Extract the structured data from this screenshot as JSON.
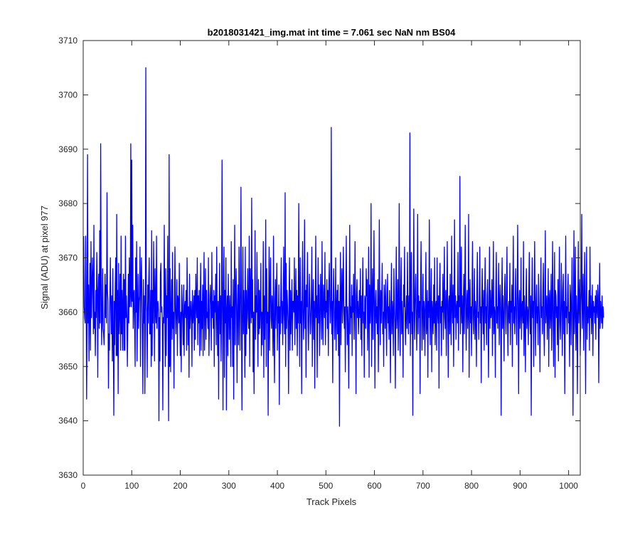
{
  "chart_data": {
    "type": "line",
    "title": "b2018031421_img.mat int time = 7.061 sec  NaN nm BS04",
    "xlabel": "Track Pixels",
    "ylabel": "Signal (ADU) at pixel 977",
    "xlim": [
      0,
      1024
    ],
    "ylim": [
      3630,
      3710
    ],
    "xticks": [
      0,
      100,
      200,
      300,
      400,
      500,
      600,
      700,
      800,
      900,
      1000
    ],
    "yticks": [
      3630,
      3640,
      3650,
      3660,
      3670,
      3680,
      3690,
      3700,
      3710
    ],
    "xtick_labels": [
      "0",
      "100",
      "200",
      "300",
      "400",
      "500",
      "600",
      "700",
      "800",
      "900",
      "1000"
    ],
    "ytick_labels": [
      "3630",
      "3640",
      "3650",
      "3660",
      "3670",
      "3680",
      "3690",
      "3700",
      "3710"
    ],
    "grid": false,
    "box": true,
    "series": [
      {
        "color": "#0000ff",
        "x_start": 1,
        "x_step": 1,
        "values": [
          3674,
          3661,
          3659,
          3658,
          3674,
          3665,
          3644,
          3659,
          3689,
          3658,
          3665,
          3651,
          3662,
          3669,
          3653,
          3673,
          3659,
          3664,
          3670,
          3665,
          3656,
          3676,
          3657,
          3660,
          3652,
          3664,
          3659,
          3671,
          3664,
          3648,
          3664,
          3667,
          3657,
          3675,
          3658,
          3691,
          3666,
          3654,
          3659,
          3668,
          3657,
          3656,
          3654,
          3660,
          3667,
          3659,
          3665,
          3658,
          3682,
          3664,
          3662,
          3646,
          3656,
          3653,
          3663,
          3670,
          3661,
          3656,
          3663,
          3651,
          3668,
          3655,
          3641,
          3662,
          3654,
          3665,
          3670,
          3652,
          3678,
          3652,
          3664,
          3645,
          3669,
          3656,
          3660,
          3667,
          3653,
          3674,
          3656,
          3664,
          3653,
          3662,
          3667,
          3653,
          3666,
          3653,
          3674,
          3659,
          3663,
          3659,
          3650,
          3658,
          3667,
          3658,
          3670,
          3661,
          3663,
          3691,
          3661,
          3688,
          3662,
          3676,
          3657,
          3663,
          3664,
          3657,
          3650,
          3670,
          3660,
          3673,
          3651,
          3660,
          3667,
          3657,
          3662,
          3663,
          3672,
          3650,
          3665,
          3670,
          3663,
          3655,
          3645,
          3666,
          3658,
          3663,
          3645,
          3657,
          3705,
          3662,
          3660,
          3648,
          3665,
          3658,
          3666,
          3670,
          3656,
          3656,
          3664,
          3650,
          3675,
          3652,
          3664,
          3658,
          3673,
          3663,
          3651,
          3668,
          3660,
          3658,
          3674,
          3657,
          3661,
          3662,
          3660,
          3640,
          3659,
          3651,
          3667,
          3669,
          3660,
          3661,
          3658,
          3642,
          3659,
          3658,
          3676,
          3661,
          3650,
          3668,
          3652,
          3663,
          3659,
          3674,
          3658,
          3640,
          3689,
          3650,
          3668,
          3649,
          3660,
          3666,
          3655,
          3671,
          3657,
          3660,
          3646,
          3662,
          3672,
          3660,
          3656,
          3661,
          3666,
          3652,
          3663,
          3662,
          3658,
          3669,
          3658,
          3652,
          3660,
          3649,
          3665,
          3662,
          3658,
          3654,
          3665,
          3652,
          3661,
          3662,
          3659,
          3664,
          3653,
          3670,
          3662,
          3654,
          3661,
          3648,
          3667,
          3657,
          3659,
          3662,
          3660,
          3650,
          3664,
          3658,
          3660,
          3663,
          3653,
          3664,
          3655,
          3667,
          3661,
          3659,
          3670,
          3654,
          3663,
          3658,
          3664,
          3652,
          3661,
          3669,
          3653,
          3662,
          3657,
          3665,
          3652,
          3663,
          3671,
          3653,
          3660,
          3668,
          3655,
          3664,
          3659,
          3660,
          3657,
          3670,
          3652,
          3658,
          3663,
          3665,
          3661,
          3653,
          3671,
          3659,
          3662,
          3657,
          3664,
          3650,
          3663,
          3660,
          3667,
          3654,
          3672,
          3660,
          3652,
          3662,
          3644,
          3661,
          3669,
          3656,
          3663,
          3651,
          3661,
          3688,
          3660,
          3642,
          3664,
          3672,
          3648,
          3664,
          3658,
          3670,
          3642,
          3660,
          3663,
          3652,
          3667,
          3660,
          3655,
          3663,
          3659,
          3650,
          3673,
          3659,
          3661,
          3650,
          3666,
          3644,
          3660,
          3676,
          3654,
          3663,
          3668,
          3660,
          3647,
          3661,
          3665,
          3654,
          3672,
          3661,
          3653,
          3664,
          3683,
          3658,
          3642,
          3662,
          3672,
          3656,
          3664,
          3660,
          3648,
          3672,
          3652,
          3664,
          3656,
          3661,
          3668,
          3659,
          3657,
          3674,
          3650,
          3668,
          3663,
          3658,
          3681,
          3659,
          3666,
          3649,
          3660,
          3645,
          3658,
          3675,
          3655,
          3663,
          3660,
          3671,
          3658,
          3650,
          3666,
          3656,
          3664,
          3657,
          3661,
          3669,
          3652,
          3660,
          3654,
          3661,
          3673,
          3648,
          3663,
          3655,
          3662,
          3677,
          3650,
          3668,
          3658,
          3660,
          3641,
          3661,
          3672,
          3653,
          3664,
          3670,
          3659,
          3657,
          3663,
          3660,
          3652,
          3674,
          3656,
          3647,
          3662,
          3666,
          3657,
          3664,
          3669,
          3653,
          3661,
          3658,
          3665,
          3643,
          3661,
          3656,
          3663,
          3670,
          3658,
          3662,
          3654,
          3660,
          3672,
          3660,
          3656,
          3682,
          3650,
          3669,
          3657,
          3664,
          3661,
          3658,
          3645,
          3662,
          3670,
          3653,
          3664,
          3656,
          3661,
          3666,
          3653,
          3662,
          3662,
          3660,
          3670,
          3654,
          3661,
          3668,
          3657,
          3664,
          3652,
          3663,
          3658,
          3680,
          3661,
          3650,
          3670,
          3658,
          3662,
          3645,
          3662,
          3673,
          3660,
          3655,
          3661,
          3677,
          3657,
          3664,
          3648,
          3665,
          3661,
          3671,
          3658,
          3653,
          3660,
          3667,
          3662,
          3656,
          3658,
          3663,
          3672,
          3650,
          3661,
          3666,
          3655,
          3662,
          3646,
          3660,
          3674,
          3659,
          3663,
          3648,
          3661,
          3670,
          3658,
          3665,
          3652,
          3658,
          3667,
          3662,
          3655,
          3673,
          3660,
          3654,
          3665,
          3662,
          3659,
          3671,
          3654,
          3662,
          3660,
          3666,
          3657,
          3664,
          3652,
          3664,
          3669,
          3662,
          3658,
          3661,
          3694,
          3656,
          3662,
          3647,
          3663,
          3668,
          3661,
          3655,
          3659,
          3670,
          3653,
          3661,
          3664,
          3656,
          3665,
          3652,
          3662,
          3639,
          3662,
          3671,
          3654,
          3663,
          3668,
          3658,
          3663,
          3672,
          3660,
          3657,
          3661,
          3649,
          3663,
          3674,
          3660,
          3654,
          3661,
          3657,
          3646,
          3662,
          3676,
          3656,
          3661,
          3659,
          3665,
          3652,
          3663,
          3660,
          3667,
          3655,
          3661,
          3673,
          3659,
          3645,
          3663,
          3666,
          3659,
          3662,
          3656,
          3660,
          3664,
          3659,
          3668,
          3655,
          3663,
          3652,
          3661,
          3670,
          3658,
          3660,
          3648,
          3663,
          3662,
          3657,
          3668,
          3663,
          3666,
          3653,
          3660,
          3672,
          3648,
          3665,
          3658,
          3661,
          3680,
          3650,
          3661,
          3668,
          3655,
          3662,
          3675,
          3660,
          3646,
          3662,
          3664,
          3658,
          3661,
          3656,
          3666,
          3649,
          3660,
          3677,
          3661,
          3654,
          3664,
          3658,
          3663,
          3669,
          3656,
          3660,
          3650,
          3665,
          3662,
          3657,
          3666,
          3660,
          3652,
          3662,
          3667,
          3658,
          3661,
          3655,
          3664,
          3660,
          3647,
          3661,
          3669,
          3656,
          3662,
          3660,
          3652,
          3668,
          3661,
          3658,
          3646,
          3663,
          3672,
          3657,
          3660,
          3666,
          3653,
          3661,
          3680,
          3659,
          3652,
          3664,
          3670,
          3656,
          3662,
          3658,
          3648,
          3665,
          3661,
          3672,
          3659,
          3654,
          3660,
          3663,
          3657,
          3671,
          3660,
          3656,
          3663,
          3658,
          3693,
          3652,
          3662,
          3671,
          3656,
          3660,
          3641,
          3662,
          3679,
          3660,
          3655,
          3664,
          3667,
          3660,
          3653,
          3661,
          3678,
          3656,
          3663,
          3659,
          3662,
          3645,
          3664,
          3673,
          3661,
          3653,
          3661,
          3667,
          3655,
          3662,
          3660,
          3652,
          3663,
          3671,
          3656,
          3658,
          3664,
          3648,
          3662,
          3659,
          3677,
          3660,
          3654,
          3663,
          3668,
          3649,
          3662,
          3660,
          3656,
          3665,
          3658,
          3670,
          3654,
          3661,
          3662,
          3653,
          3670,
          3660,
          3658,
          3663,
          3646,
          3664,
          3669,
          3658,
          3661,
          3652,
          3662,
          3660,
          3667,
          3655,
          3661,
          3672,
          3659,
          3657,
          3664,
          3652,
          3661,
          3673,
          3660,
          3648,
          3662,
          3663,
          3656,
          3667,
          3660,
          3654,
          3674,
          3661,
          3658,
          3665,
          3650,
          3662,
          3677,
          3659,
          3663,
          3655,
          3661,
          3662,
          3658,
          3671,
          3653,
          3663,
          3661,
          3685,
          3656,
          3660,
          3672,
          3658,
          3663,
          3649,
          3661,
          3667,
          3656,
          3663,
          3676,
          3660,
          3653,
          3662,
          3664,
          3657,
          3660,
          3678,
          3648,
          3662,
          3666,
          3658,
          3661,
          3652,
          3663,
          3673,
          3659,
          3656,
          3661,
          3668,
          3655,
          3662,
          3660,
          3650,
          3664,
          3671,
          3659,
          3660,
          3655,
          3663,
          3672,
          3658,
          3661,
          3647,
          3662,
          3668,
          3660,
          3656,
          3664,
          3653,
          3662,
          3670,
          3658,
          3661,
          3654,
          3663,
          3666,
          3659,
          3648,
          3661,
          3672,
          3657,
          3664,
          3659,
          3660,
          3666,
          3652,
          3662,
          3673,
          3656,
          3661,
          3660,
          3648,
          3664,
          3671,
          3658,
          3661,
          3657,
          3663,
          3669,
          3654,
          3661,
          3665,
          3660,
          3641,
          3662,
          3670,
          3657,
          3663,
          3659,
          3651,
          3664,
          3667,
          3660,
          3656,
          3663,
          3672,
          3659,
          3652,
          3661,
          3662,
          3658,
          3669,
          3654,
          3662,
          3660,
          3665,
          3650,
          3663,
          3674,
          3658,
          3661,
          3656,
          3662,
          3668,
          3659,
          3654,
          3663,
          3676,
          3660,
          3645,
          3662,
          3664,
          3657,
          3660,
          3670,
          3655,
          3661,
          3662,
          3658,
          3673,
          3652,
          3663,
          3660,
          3649,
          3662,
          3668,
          3657,
          3661,
          3660,
          3654,
          3664,
          3671,
          3659,
          3656,
          3663,
          3641,
          3661,
          3670,
          3659,
          3662,
          3650,
          3663,
          3673,
          3660,
          3652,
          3662,
          3665,
          3658,
          3661,
          3654,
          3667,
          3662,
          3657,
          3649,
          3663,
          3670,
          3659,
          3661,
          3656,
          3664,
          3669,
          3657,
          3652,
          3662,
          3675,
          3658,
          3661,
          3663,
          3655,
          3660,
          3668,
          3650,
          3662,
          3664,
          3657,
          3660,
          3667,
          3653,
          3661,
          3673,
          3659,
          3650,
          3662,
          3671,
          3648,
          3664,
          3663,
          3659,
          3661,
          3654,
          3666,
          3651,
          3662,
          3672,
          3658,
          3655,
          3661,
          3669,
          3660,
          3652,
          3664,
          3667,
          3656,
          3662,
          3645,
          3660,
          3674,
          3659,
          3661,
          3656,
          3663,
          3667,
          3658,
          3660,
          3650,
          3665,
          3663,
          3654,
          3661,
          3670,
          3659,
          3641,
          3662,
          3675,
          3656,
          3660,
          3672,
          3653,
          3663,
          3660,
          3645,
          3661,
          3673,
          3658,
          3662,
          3666,
          3652,
          3660,
          3664,
          3678,
          3657,
          3662,
          3667,
          3653,
          3661,
          3671,
          3659,
          3645,
          3663,
          3672,
          3655,
          3661,
          3658,
          3660,
          3664,
          3653,
          3672,
          3659,
          3663,
          3656,
          3660,
          3665,
          3652,
          3662,
          3660,
          3661,
          3658,
          3663,
          3655,
          3664,
          3661,
          3659,
          3665,
          3663,
          3647,
          3661,
          3669,
          3657,
          3662,
          3660,
          3658,
          3663,
          3657,
          3661,
          3659
        ]
      }
    ]
  }
}
